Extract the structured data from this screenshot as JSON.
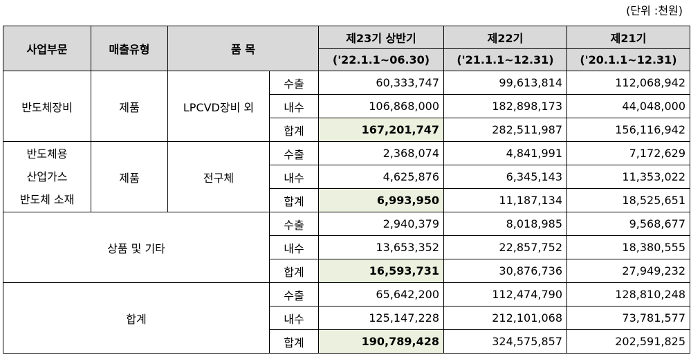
{
  "unit_note": "(단위 :천원)",
  "header": {
    "segment": "사업부문",
    "sales_type": "매출유형",
    "item": "품 목",
    "periods": [
      {
        "name": "제23기 상반기",
        "range": "('22.1.1~06.30)"
      },
      {
        "name": "제22기",
        "range": "('21.1.1~12.31)"
      },
      {
        "name": "제21기",
        "range": "('20.1.1~12.31)"
      }
    ]
  },
  "groups": [
    {
      "segment_lines": [
        "반도체장비"
      ],
      "sales_type": "제품",
      "item": "LPCVD장비 외",
      "rows": [
        {
          "kind": "수출",
          "values": [
            "60,333,747",
            "99,613,814",
            "112,068,942"
          ]
        },
        {
          "kind": "내수",
          "values": [
            "106,868,000",
            "182,898,173",
            "44,048,000"
          ]
        },
        {
          "kind": "합계",
          "values": [
            "167,201,747",
            "282,511,987",
            "156,116,942"
          ]
        }
      ]
    },
    {
      "segment_lines": [
        "반도체용",
        "산업가스",
        "반도체 소재"
      ],
      "sales_type": "제품",
      "item": "전구체",
      "rows": [
        {
          "kind": "수출",
          "values": [
            "2,368,074",
            "4,841,991",
            "7,172,629"
          ]
        },
        {
          "kind": "내수",
          "values": [
            "4,625,876",
            "6,345,143",
            "11,353,022"
          ]
        },
        {
          "kind": "합계",
          "values": [
            "6,993,950",
            "11,187,134",
            "18,525,651"
          ]
        }
      ]
    },
    {
      "label": "상품 및 기타",
      "rows": [
        {
          "kind": "수출",
          "values": [
            "2,940,379",
            "8,018,985",
            "9,568,677"
          ]
        },
        {
          "kind": "내수",
          "values": [
            "13,653,352",
            "22,857,752",
            "18,380,555"
          ]
        },
        {
          "kind": "합계",
          "values": [
            "16,593,731",
            "30,876,736",
            "27,949,232"
          ]
        }
      ]
    },
    {
      "label": "합계",
      "rows": [
        {
          "kind": "수출",
          "values": [
            "65,642,200",
            "112,474,790",
            "128,810,248"
          ]
        },
        {
          "kind": "내수",
          "values": [
            "125,147,228",
            "212,101,068",
            "73,781,577"
          ]
        },
        {
          "kind": "합계",
          "values": [
            "190,789,428",
            "324,575,857",
            "202,591,825"
          ]
        }
      ]
    }
  ]
}
